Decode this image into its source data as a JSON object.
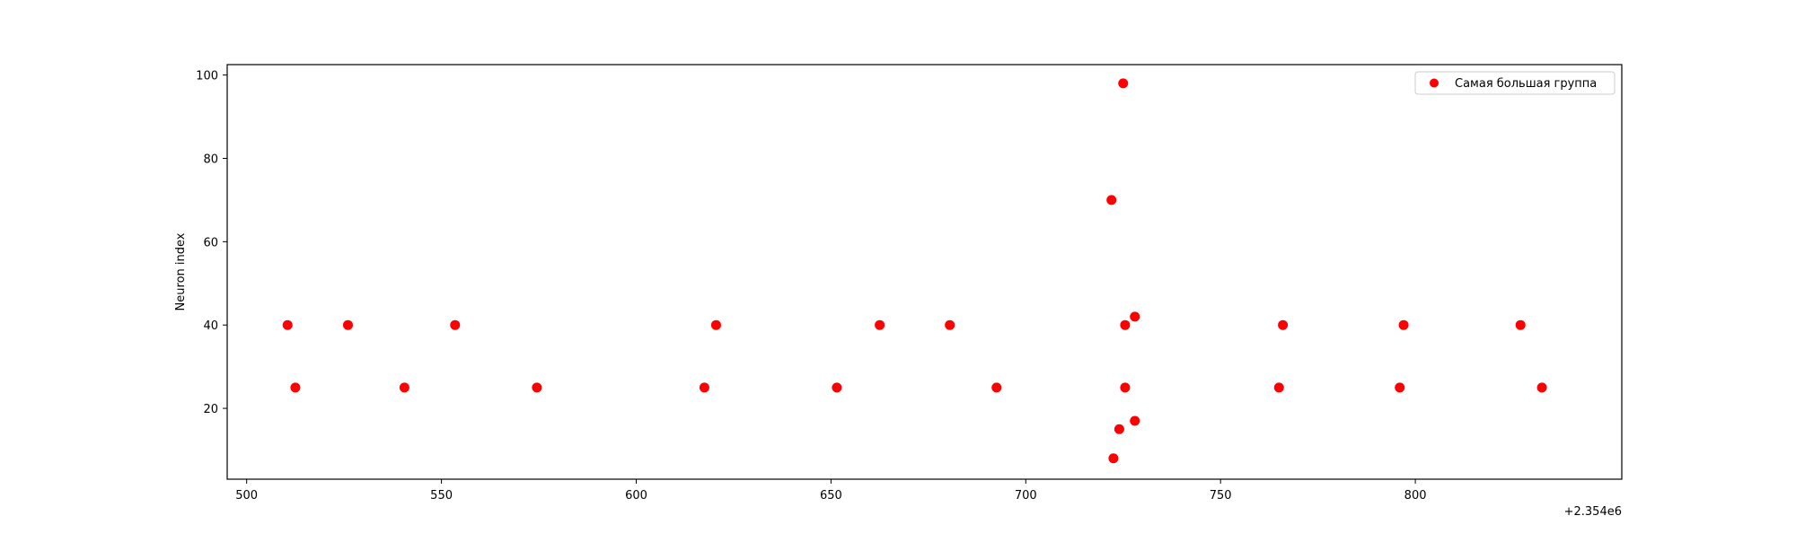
{
  "chart_data": {
    "type": "scatter",
    "xlabel": "",
    "ylabel": "Neuron index",
    "x_offset_text": "+2.354e6",
    "xlim": [
      495,
      853
    ],
    "ylim": [
      3,
      102.5
    ],
    "xticks": [
      500,
      550,
      600,
      650,
      700,
      750,
      800
    ],
    "yticks": [
      20,
      40,
      60,
      80,
      100
    ],
    "grid": false,
    "legend_position": "top-right",
    "colors": {
      "series": "#ff0000",
      "axes": "#000000",
      "background": "#ffffff"
    },
    "series": [
      {
        "name": "Самая большая группа",
        "points": [
          {
            "x": 510.5,
            "y": 40
          },
          {
            "x": 512.5,
            "y": 25
          },
          {
            "x": 526,
            "y": 40
          },
          {
            "x": 540.5,
            "y": 25
          },
          {
            "x": 553.5,
            "y": 40
          },
          {
            "x": 574.5,
            "y": 25
          },
          {
            "x": 617.5,
            "y": 25
          },
          {
            "x": 620.5,
            "y": 40
          },
          {
            "x": 651.5,
            "y": 25
          },
          {
            "x": 662.5,
            "y": 40
          },
          {
            "x": 680.5,
            "y": 40
          },
          {
            "x": 692.5,
            "y": 25
          },
          {
            "x": 722,
            "y": 70
          },
          {
            "x": 722.5,
            "y": 8
          },
          {
            "x": 724,
            "y": 15
          },
          {
            "x": 725,
            "y": 98
          },
          {
            "x": 725.5,
            "y": 40
          },
          {
            "x": 725.5,
            "y": 25
          },
          {
            "x": 728,
            "y": 42
          },
          {
            "x": 728,
            "y": 17
          },
          {
            "x": 765,
            "y": 25
          },
          {
            "x": 766,
            "y": 40
          },
          {
            "x": 796,
            "y": 25
          },
          {
            "x": 797,
            "y": 40
          },
          {
            "x": 827,
            "y": 40
          },
          {
            "x": 832.5,
            "y": 25
          }
        ]
      }
    ]
  }
}
